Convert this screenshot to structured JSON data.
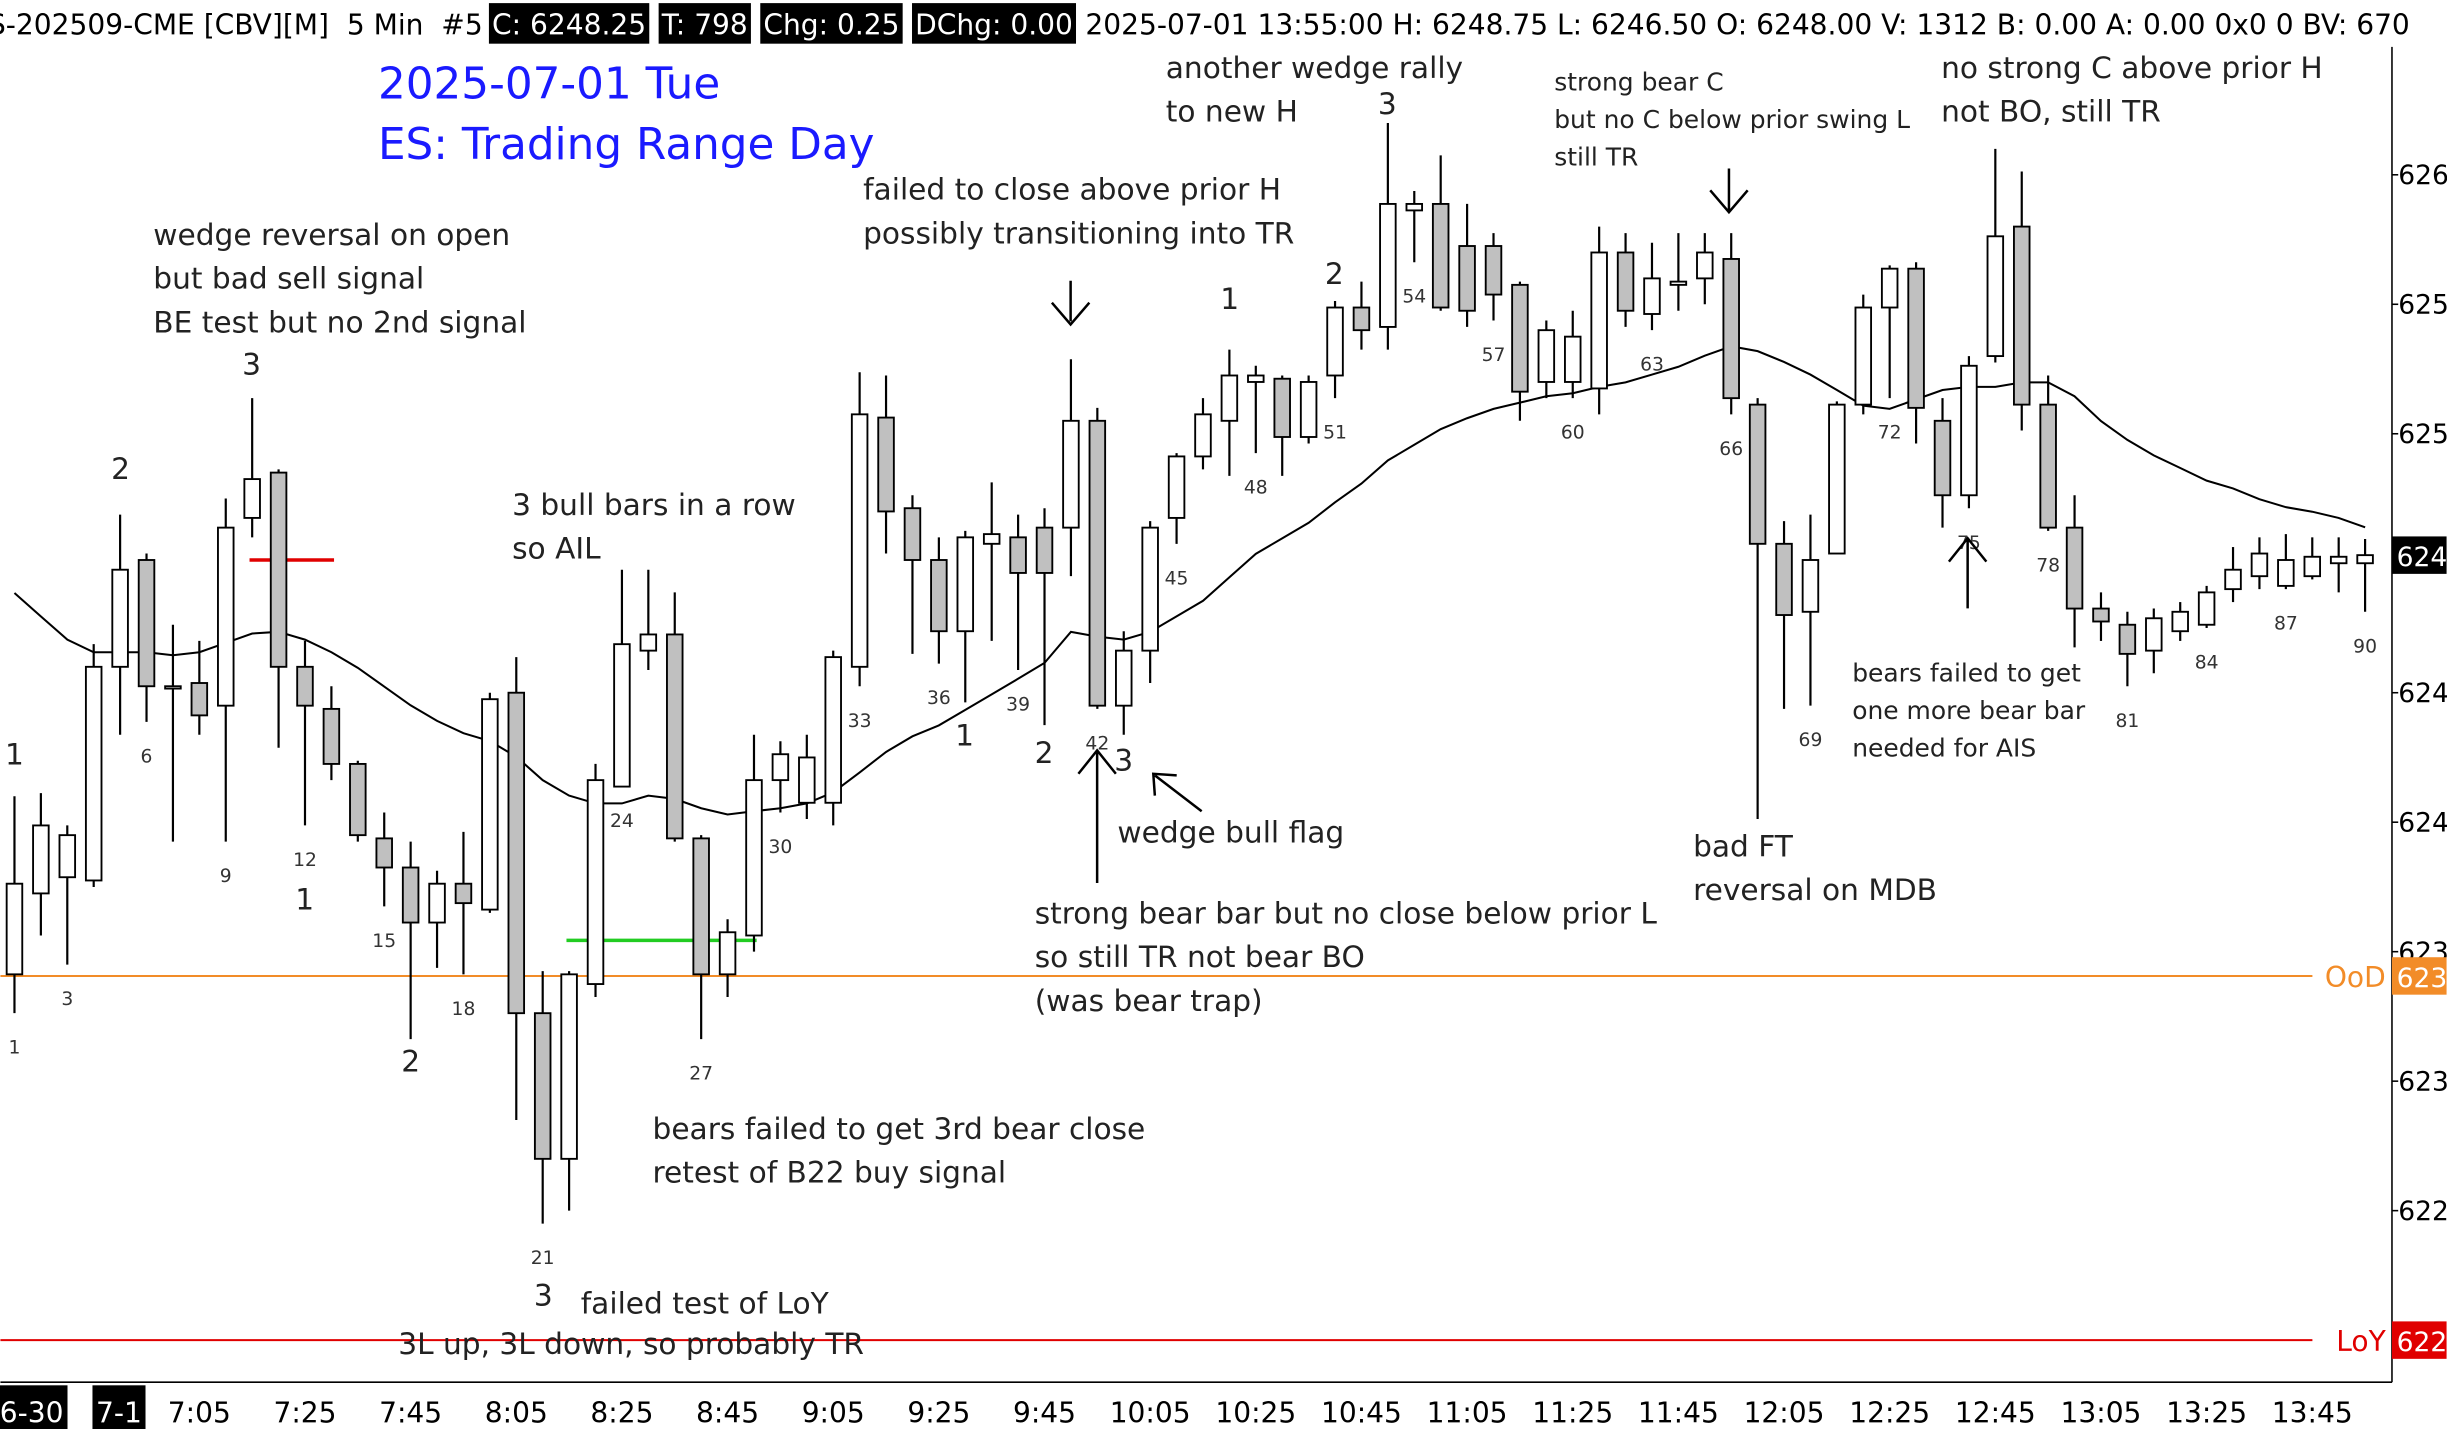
{
  "chart_data": {
    "type": "candlestick",
    "header": {
      "symbol": "S-202509-CME [CBV][M]  5 Min  #5",
      "boxed": [
        "C: 6248.25",
        "T: 798",
        "Chg: 0.25",
        "DChg: 0.00"
      ],
      "rest": "2025-07-01 13:55:00 H: 6248.75 L: 6246.50 O: 6248.00 V: 1312 B: 0.00 A: 0.00 0x0 0 BV: 670"
    },
    "title": [
      "2025-07-01 Tue",
      "ES: Trading Range Day"
    ],
    "title_color": "#1a1aff",
    "open": [
      6235.3,
      6237.8,
      6238.3,
      6238.2,
      6244.8,
      6248.1,
      6244.2,
      6244.3,
      6243.6,
      6249.4,
      6250.8,
      6244.8,
      6243.5,
      6241.8,
      6239.5,
      6238.6,
      6236.9,
      6238.1,
      6237.3,
      6244.0,
      6234.1,
      6229.6,
      6235.0,
      6241.1,
      6245.3,
      6245.8,
      6239.5,
      6235.3,
      6236.5,
      6241.3,
      6240.6,
      6240.6,
      6244.8,
      6252.5,
      6249.7,
      6248.1,
      6245.9,
      6248.6,
      6248.8,
      6249.1,
      6249.1,
      6252.4,
      6243.6,
      6245.3,
      6249.4,
      6251.3,
      6252.4,
      6253.6,
      6253.7,
      6251.9,
      6253.8,
      6255.9,
      6255.3,
      6258.9,
      6259.1,
      6257.8,
      6257.8,
      6256.6,
      6253.6,
      6253.6,
      6253.4,
      6257.6,
      6255.7,
      6256.6,
      6256.8,
      6257.4,
      6252.9,
      6248.6,
      6246.5,
      6248.3,
      6252.9,
      6255.9,
      6257.1,
      6252.4,
      6250.1,
      6254.4,
      6258.4,
      6252.9,
      6249.1,
      6246.6,
      6246.1,
      6245.3,
      6245.9,
      6246.1,
      6247.2,
      6247.6,
      6247.3,
      6247.6,
      6248.0,
      6248.0
    ],
    "high": [
      6240.8,
      6240.9,
      6239.9,
      6245.5,
      6249.5,
      6248.3,
      6246.1,
      6245.6,
      6250.0,
      6253.1,
      6250.9,
      6245.6,
      6244.2,
      6241.9,
      6240.3,
      6239.4,
      6238.5,
      6239.7,
      6244.0,
      6245.1,
      6235.4,
      6235.4,
      6241.8,
      6247.8,
      6247.8,
      6247.1,
      6239.6,
      6237.0,
      6242.7,
      6242.5,
      6242.7,
      6245.3,
      6253.9,
      6253.8,
      6250.1,
      6248.8,
      6249.0,
      6250.5,
      6249.5,
      6249.7,
      6254.3,
      6252.8,
      6245.9,
      6249.3,
      6251.4,
      6253.1,
      6254.6,
      6254.1,
      6253.8,
      6253.8,
      6256.1,
      6256.7,
      6261.6,
      6259.5,
      6260.6,
      6259.1,
      6258.2,
      6256.7,
      6255.5,
      6255.8,
      6258.4,
      6258.2,
      6257.9,
      6258.2,
      6258.2,
      6258.2,
      6253.1,
      6249.3,
      6249.5,
      6253.0,
      6256.3,
      6257.2,
      6257.3,
      6253.1,
      6254.4,
      6260.8,
      6260.1,
      6253.8,
      6250.1,
      6247.1,
      6246.5,
      6246.6,
      6246.8,
      6247.3,
      6248.5,
      6248.8,
      6248.9,
      6248.8,
      6248.8,
      6248.75
    ],
    "low": [
      6234.1,
      6236.5,
      6235.6,
      6238.0,
      6242.7,
      6243.1,
      6239.4,
      6242.7,
      6239.4,
      6248.8,
      6242.3,
      6239.9,
      6241.3,
      6239.4,
      6237.4,
      6233.3,
      6235.5,
      6235.3,
      6237.2,
      6230.8,
      6227.6,
      6228.0,
      6234.6,
      6241.1,
      6244.7,
      6239.4,
      6233.3,
      6234.6,
      6236.0,
      6240.3,
      6240.1,
      6239.9,
      6244.2,
      6248.3,
      6245.2,
      6244.9,
      6243.7,
      6245.6,
      6244.7,
      6243.0,
      6247.6,
      6243.5,
      6242.7,
      6244.3,
      6248.6,
      6250.9,
      6250.7,
      6251.4,
      6250.7,
      6251.7,
      6253.1,
      6254.6,
      6254.6,
      6257.3,
      6255.8,
      6255.3,
      6255.5,
      6252.4,
      6253.1,
      6253.1,
      6252.6,
      6255.3,
      6255.2,
      6255.8,
      6256.0,
      6252.6,
      6240.1,
      6243.5,
      6243.6,
      6248.3,
      6252.6,
      6253.1,
      6251.7,
      6249.1,
      6249.7,
      6254.2,
      6252.1,
      6249.0,
      6245.4,
      6245.6,
      6244.2,
      6244.6,
      6245.6,
      6246.0,
      6246.8,
      6247.2,
      6247.2,
      6247.5,
      6247.1,
      6246.5
    ],
    "close": [
      6238.1,
      6239.9,
      6239.6,
      6244.8,
      6247.8,
      6244.2,
      6244.2,
      6243.3,
      6249.1,
      6250.6,
      6244.8,
      6243.6,
      6241.8,
      6239.6,
      6238.6,
      6236.9,
      6238.1,
      6237.5,
      6243.8,
      6234.1,
      6229.6,
      6235.3,
      6241.3,
      6245.5,
      6245.8,
      6239.5,
      6235.3,
      6236.6,
      6241.3,
      6242.1,
      6242.0,
      6245.1,
      6252.6,
      6249.6,
      6248.1,
      6245.9,
      6248.8,
      6248.9,
      6247.7,
      6247.7,
      6252.4,
      6243.6,
      6245.3,
      6249.1,
      6251.3,
      6252.6,
      6253.8,
      6253.8,
      6251.9,
      6253.6,
      6255.9,
      6255.2,
      6259.1,
      6259.1,
      6255.9,
      6255.8,
      6256.3,
      6253.3,
      6255.2,
      6255.0,
      6257.6,
      6255.8,
      6256.8,
      6256.7,
      6257.6,
      6253.1,
      6248.6,
      6246.4,
      6248.1,
      6252.9,
      6255.9,
      6257.1,
      6252.8,
      6250.1,
      6254.1,
      6258.1,
      6252.9,
      6249.1,
      6246.6,
      6246.2,
      6245.2,
      6246.3,
      6246.5,
      6247.1,
      6247.8,
      6248.3,
      6248.1,
      6248.2,
      6248.2,
      6248.25
    ],
    "ema": [
      6247.08,
      6246.36,
      6245.64,
      6245.25,
      6245.25,
      6245.25,
      6245.16,
      6245.25,
      6245.54,
      6245.83,
      6245.88,
      6245.64,
      6245.25,
      6244.77,
      6244.19,
      6243.61,
      6243.13,
      6242.75,
      6242.51,
      6242.02,
      6241.3,
      6240.82,
      6240.58,
      6240.58,
      6240.82,
      6240.72,
      6240.43,
      6240.24,
      6240.34,
      6240.43,
      6240.58,
      6240.92,
      6241.54,
      6242.17,
      6242.65,
      6242.99,
      6243.47,
      6243.95,
      6244.43,
      6244.92,
      6245.88,
      6245.73,
      6245.64,
      6245.88,
      6246.36,
      6246.84,
      6247.57,
      6248.29,
      6248.77,
      6249.25,
      6249.88,
      6250.46,
      6251.18,
      6251.66,
      6252.14,
      6252.48,
      6252.77,
      6252.96,
      6253.16,
      6253.25,
      6253.45,
      6253.59,
      6253.83,
      6254.07,
      6254.41,
      6254.7,
      6254.55,
      6254.22,
      6253.83,
      6253.35,
      6252.87,
      6252.77,
      6253.06,
      6253.35,
      6253.45,
      6253.45,
      6253.59,
      6253.59,
      6253.16,
      6252.39,
      6251.81,
      6251.33,
      6250.94,
      6250.55,
      6250.31,
      6249.98,
      6249.73,
      6249.59,
      6249.4,
      6249.11
    ],
    "ema_color": "#000000",
    "up_color": "#ffffff",
    "down_color": "#c0c0c0",
    "ylim": [
      6222.7,
      6265.4
    ],
    "yticks": [
      {
        "value": 6260,
        "label": "626"
      },
      {
        "value": 6256,
        "label": "625"
      },
      {
        "value": 6252,
        "label": "625"
      },
      {
        "value": 6244,
        "label": "624"
      },
      {
        "value": 6240,
        "label": "624"
      },
      {
        "value": 6236,
        "label": "623"
      },
      {
        "value": 6232,
        "label": "623"
      },
      {
        "value": 6228,
        "label": "622"
      }
    ],
    "last_price": {
      "value": 6248.25,
      "label": "624"
    },
    "levels": [
      {
        "name": "OoD",
        "value": 6235.25,
        "label": "623",
        "color": "#f28c28"
      },
      {
        "name": "LoY",
        "value": 6224,
        "label": "622",
        "color": "#e00000"
      }
    ],
    "segments": [
      {
        "value": 6248.1,
        "color": "#e00000"
      },
      {
        "value": 6236.35,
        "color": "#22cc22"
      }
    ],
    "x_labels": [
      "6-30",
      "7-1",
      "7:05",
      "7:25",
      "7:45",
      "8:05",
      "8:25",
      "8:45",
      "9:05",
      "9:25",
      "9:45",
      "10:05",
      "10:25",
      "10:45",
      "11:05",
      "11:25",
      "11:45",
      "12:05",
      "12:25",
      "12:45",
      "13:05",
      "13:25",
      "13:45"
    ],
    "bar_numbers": [
      1,
      3,
      6,
      9,
      12,
      15,
      18,
      21,
      24,
      27,
      30,
      33,
      36,
      39,
      42,
      45,
      48,
      51,
      54,
      57,
      60,
      63,
      66,
      69,
      72,
      75,
      78,
      81,
      84,
      87,
      90
    ],
    "leg_counts": [
      "1",
      "2",
      "3",
      "1",
      "2",
      "3",
      "1",
      "2",
      "3",
      "1",
      "2",
      "3"
    ],
    "annotations": [
      [
        "wedge reversal on open",
        "but bad sell signal",
        "BE test but no 2nd signal"
      ],
      [
        "3 bull bars in a row",
        "so AIL"
      ],
      [
        "failed to close above prior H",
        "possibly transitioning into TR"
      ],
      [
        "another wedge rally",
        "to new H"
      ],
      [
        "strong bear C",
        "but no C below prior swing L",
        "still TR"
      ],
      [
        "no strong C above prior H",
        "not BO, still TR"
      ],
      [
        "wedge bull flag"
      ],
      [
        "strong bear bar but no close below prior L",
        "so still TR not bear BO",
        "(was bear trap)"
      ],
      [
        "bad FT",
        "reversal on MDB"
      ],
      [
        "bears failed to get",
        "one more bear bar",
        "needed for AIS"
      ],
      [
        "bears failed to get 3rd bear close",
        "retest of B22 buy signal"
      ],
      [
        "failed test of LoY"
      ],
      [
        "3L up, 3L down, so probably TR"
      ]
    ]
  }
}
